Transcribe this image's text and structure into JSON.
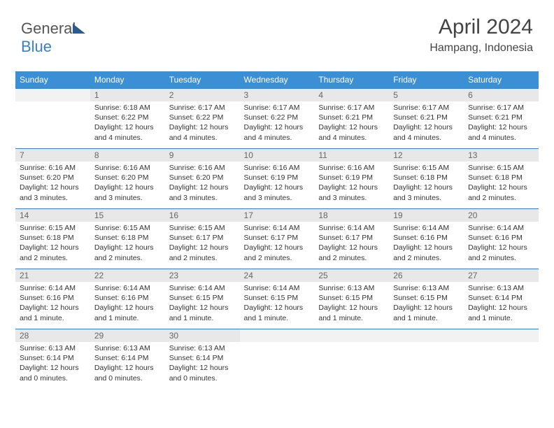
{
  "logo": {
    "text1": "General",
    "text2": "Blue"
  },
  "header": {
    "title": "April 2024",
    "location": "Hampang, Indonesia"
  },
  "colors": {
    "header_bg": "#3b8fd4",
    "header_text": "#ffffff",
    "row_divider": "#3b7fc4",
    "daynum_bg": "#e8e8e8",
    "page_bg": "#ffffff",
    "body_text": "#333333"
  },
  "days_of_week": [
    "Sunday",
    "Monday",
    "Tuesday",
    "Wednesday",
    "Thursday",
    "Friday",
    "Saturday"
  ],
  "cells": [
    {
      "n": "",
      "sr": "",
      "ss": "",
      "dl": ""
    },
    {
      "n": "1",
      "sr": "Sunrise: 6:18 AM",
      "ss": "Sunset: 6:22 PM",
      "dl": "Daylight: 12 hours and 4 minutes."
    },
    {
      "n": "2",
      "sr": "Sunrise: 6:17 AM",
      "ss": "Sunset: 6:22 PM",
      "dl": "Daylight: 12 hours and 4 minutes."
    },
    {
      "n": "3",
      "sr": "Sunrise: 6:17 AM",
      "ss": "Sunset: 6:22 PM",
      "dl": "Daylight: 12 hours and 4 minutes."
    },
    {
      "n": "4",
      "sr": "Sunrise: 6:17 AM",
      "ss": "Sunset: 6:21 PM",
      "dl": "Daylight: 12 hours and 4 minutes."
    },
    {
      "n": "5",
      "sr": "Sunrise: 6:17 AM",
      "ss": "Sunset: 6:21 PM",
      "dl": "Daylight: 12 hours and 4 minutes."
    },
    {
      "n": "6",
      "sr": "Sunrise: 6:17 AM",
      "ss": "Sunset: 6:21 PM",
      "dl": "Daylight: 12 hours and 4 minutes."
    },
    {
      "n": "7",
      "sr": "Sunrise: 6:16 AM",
      "ss": "Sunset: 6:20 PM",
      "dl": "Daylight: 12 hours and 3 minutes."
    },
    {
      "n": "8",
      "sr": "Sunrise: 6:16 AM",
      "ss": "Sunset: 6:20 PM",
      "dl": "Daylight: 12 hours and 3 minutes."
    },
    {
      "n": "9",
      "sr": "Sunrise: 6:16 AM",
      "ss": "Sunset: 6:20 PM",
      "dl": "Daylight: 12 hours and 3 minutes."
    },
    {
      "n": "10",
      "sr": "Sunrise: 6:16 AM",
      "ss": "Sunset: 6:19 PM",
      "dl": "Daylight: 12 hours and 3 minutes."
    },
    {
      "n": "11",
      "sr": "Sunrise: 6:16 AM",
      "ss": "Sunset: 6:19 PM",
      "dl": "Daylight: 12 hours and 3 minutes."
    },
    {
      "n": "12",
      "sr": "Sunrise: 6:15 AM",
      "ss": "Sunset: 6:18 PM",
      "dl": "Daylight: 12 hours and 3 minutes."
    },
    {
      "n": "13",
      "sr": "Sunrise: 6:15 AM",
      "ss": "Sunset: 6:18 PM",
      "dl": "Daylight: 12 hours and 2 minutes."
    },
    {
      "n": "14",
      "sr": "Sunrise: 6:15 AM",
      "ss": "Sunset: 6:18 PM",
      "dl": "Daylight: 12 hours and 2 minutes."
    },
    {
      "n": "15",
      "sr": "Sunrise: 6:15 AM",
      "ss": "Sunset: 6:18 PM",
      "dl": "Daylight: 12 hours and 2 minutes."
    },
    {
      "n": "16",
      "sr": "Sunrise: 6:15 AM",
      "ss": "Sunset: 6:17 PM",
      "dl": "Daylight: 12 hours and 2 minutes."
    },
    {
      "n": "17",
      "sr": "Sunrise: 6:14 AM",
      "ss": "Sunset: 6:17 PM",
      "dl": "Daylight: 12 hours and 2 minutes."
    },
    {
      "n": "18",
      "sr": "Sunrise: 6:14 AM",
      "ss": "Sunset: 6:17 PM",
      "dl": "Daylight: 12 hours and 2 minutes."
    },
    {
      "n": "19",
      "sr": "Sunrise: 6:14 AM",
      "ss": "Sunset: 6:16 PM",
      "dl": "Daylight: 12 hours and 2 minutes."
    },
    {
      "n": "20",
      "sr": "Sunrise: 6:14 AM",
      "ss": "Sunset: 6:16 PM",
      "dl": "Daylight: 12 hours and 2 minutes."
    },
    {
      "n": "21",
      "sr": "Sunrise: 6:14 AM",
      "ss": "Sunset: 6:16 PM",
      "dl": "Daylight: 12 hours and 1 minute."
    },
    {
      "n": "22",
      "sr": "Sunrise: 6:14 AM",
      "ss": "Sunset: 6:16 PM",
      "dl": "Daylight: 12 hours and 1 minute."
    },
    {
      "n": "23",
      "sr": "Sunrise: 6:14 AM",
      "ss": "Sunset: 6:15 PM",
      "dl": "Daylight: 12 hours and 1 minute."
    },
    {
      "n": "24",
      "sr": "Sunrise: 6:14 AM",
      "ss": "Sunset: 6:15 PM",
      "dl": "Daylight: 12 hours and 1 minute."
    },
    {
      "n": "25",
      "sr": "Sunrise: 6:13 AM",
      "ss": "Sunset: 6:15 PM",
      "dl": "Daylight: 12 hours and 1 minute."
    },
    {
      "n": "26",
      "sr": "Sunrise: 6:13 AM",
      "ss": "Sunset: 6:15 PM",
      "dl": "Daylight: 12 hours and 1 minute."
    },
    {
      "n": "27",
      "sr": "Sunrise: 6:13 AM",
      "ss": "Sunset: 6:14 PM",
      "dl": "Daylight: 12 hours and 1 minute."
    },
    {
      "n": "28",
      "sr": "Sunrise: 6:13 AM",
      "ss": "Sunset: 6:14 PM",
      "dl": "Daylight: 12 hours and 0 minutes."
    },
    {
      "n": "29",
      "sr": "Sunrise: 6:13 AM",
      "ss": "Sunset: 6:14 PM",
      "dl": "Daylight: 12 hours and 0 minutes."
    },
    {
      "n": "30",
      "sr": "Sunrise: 6:13 AM",
      "ss": "Sunset: 6:14 PM",
      "dl": "Daylight: 12 hours and 0 minutes."
    },
    {
      "n": "",
      "sr": "",
      "ss": "",
      "dl": ""
    },
    {
      "n": "",
      "sr": "",
      "ss": "",
      "dl": ""
    },
    {
      "n": "",
      "sr": "",
      "ss": "",
      "dl": ""
    },
    {
      "n": "",
      "sr": "",
      "ss": "",
      "dl": ""
    }
  ]
}
